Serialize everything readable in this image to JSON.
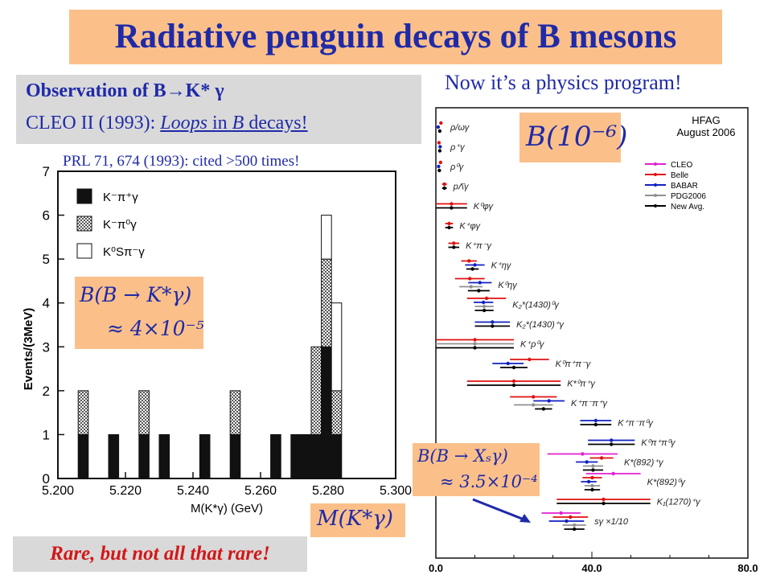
{
  "slide": {
    "title": "Radiative penguin decays of  B mesons",
    "observation_title": "Observation of B→K* γ",
    "observation_sub_pre": "CLEO II (1993):  ",
    "observation_sub_loops": "Loops",
    "observation_sub_mid": " in ",
    "observation_sub_b": "B",
    "observation_sub_post": " decays!",
    "citation": "PRL 71, 674 (1993): cited >500 times!",
    "physics_note": "Now it’s a physics program!",
    "tagline": "Rare, but not all that rare!",
    "bf_kstar_line1": "B(B → K*γ)",
    "bf_kstar_line2": "≈ 4×10⁻⁵",
    "bf_units": "B(10⁻⁶)",
    "bf_xs_line1": "B(B → Xₛγ)",
    "bf_xs_line2": "≈ 3.5×10⁻⁴",
    "mass_label": "M(K*γ)"
  },
  "chart_data": [
    {
      "type": "bar",
      "title": "",
      "xlabel": "M(K*γ) (GeV)",
      "ylabel": "Events/(3MeV)",
      "xlim": [
        5.2,
        5.3
      ],
      "ylim": [
        0,
        7
      ],
      "x_ticks": [
        "5.200",
        "5.220",
        "5.240",
        "5.260",
        "5.280",
        "5.300"
      ],
      "y_ticks": [
        "0",
        "1",
        "2",
        "3",
        "4",
        "5",
        "6",
        "7"
      ],
      "legend": [
        "K⁻π⁺γ",
        "K⁻π⁰γ",
        "K⁰Sπ⁻γ"
      ],
      "legend_position": "top-left",
      "bin_width": 0.003,
      "bins": [
        {
          "x": 5.2075,
          "solid": 1,
          "hatched": 1,
          "open": 0
        },
        {
          "x": 5.2165,
          "solid": 1,
          "hatched": 0,
          "open": 0
        },
        {
          "x": 5.2255,
          "solid": 1,
          "hatched": 1,
          "open": 0
        },
        {
          "x": 5.2315,
          "solid": 1,
          "hatched": 0,
          "open": 0
        },
        {
          "x": 5.2435,
          "solid": 1,
          "hatched": 0,
          "open": 0
        },
        {
          "x": 5.2525,
          "solid": 1,
          "hatched": 1,
          "open": 0
        },
        {
          "x": 5.2645,
          "solid": 1,
          "hatched": 0,
          "open": 0
        },
        {
          "x": 5.2705,
          "solid": 1,
          "hatched": 0,
          "open": 0
        },
        {
          "x": 5.2735,
          "solid": 1,
          "hatched": 0,
          "open": 0
        },
        {
          "x": 5.2765,
          "solid": 1,
          "hatched": 2,
          "open": 0
        },
        {
          "x": 5.2795,
          "solid": 3,
          "hatched": 2,
          "open": 1
        },
        {
          "x": 5.2825,
          "solid": 1,
          "hatched": 1,
          "open": 2
        }
      ]
    },
    {
      "type": "scatter",
      "title": "HFAG August 2006",
      "xlabel": "",
      "ylabel": "",
      "xlim": [
        0,
        80
      ],
      "x_ticks": [
        "0.0",
        "40.0",
        "80.0"
      ],
      "legend": [
        "CLEO",
        "Belle",
        "BABAR",
        "PDG2006",
        "New Avg."
      ],
      "legend_position": "top-right",
      "series_colors": {
        "CLEO": "#e020d0",
        "Belle": "#e01010",
        "BABAR": "#1020c0",
        "PDG2006": "#909090",
        "New Avg.": "#000000"
      },
      "modes": [
        {
          "label": "ρ/ωγ",
          "values": [
            {
              "s": "Belle",
              "v": 1.3,
              "e": 0.3
            },
            {
              "s": "BABAR",
              "v": 0.6,
              "e": 0.3
            },
            {
              "s": "New Avg.",
              "v": 1.0,
              "e": 0.25
            }
          ]
        },
        {
          "label": "ρ⁺γ",
          "values": [
            {
              "s": "Belle",
              "v": 0.8,
              "e": 0.4
            },
            {
              "s": "BABAR",
              "v": 1.1,
              "e": 0.4
            },
            {
              "s": "New Avg.",
              "v": 1.0,
              "e": 0.3
            }
          ]
        },
        {
          "label": "ρ⁰γ",
          "values": [
            {
              "s": "Belle",
              "v": 1.2,
              "e": 0.3
            },
            {
              "s": "BABAR",
              "v": 0.7,
              "e": 0.3
            },
            {
              "s": "New Avg.",
              "v": 0.9,
              "e": 0.2
            }
          ]
        },
        {
          "label": "pΛ̄γ",
          "values": [
            {
              "s": "Belle",
              "v": 2.2,
              "e": 0.6
            },
            {
              "s": "New Avg.",
              "v": 2.2,
              "e": 0.6
            }
          ]
        },
        {
          "label": "K⁰φγ",
          "values": [
            {
              "s": "Belle",
              "v": 4.0,
              "e": 4.0
            },
            {
              "s": "New Avg.",
              "v": 4.0,
              "e": 4.0
            }
          ]
        },
        {
          "label": "K⁺φγ",
          "values": [
            {
              "s": "Belle",
              "v": 3.4,
              "e": 1.0
            },
            {
              "s": "New Avg.",
              "v": 3.4,
              "e": 1.0
            }
          ]
        },
        {
          "label": "K⁺π⁻γ",
          "values": [
            {
              "s": "Belle",
              "v": 4.6,
              "e": 1.4
            },
            {
              "s": "New Avg.",
              "v": 4.6,
              "e": 1.4
            }
          ]
        },
        {
          "label": "K⁺ηγ",
          "values": [
            {
              "s": "Belle",
              "v": 8.5,
              "e": 2.0
            },
            {
              "s": "BABAR",
              "v": 10.0,
              "e": 2.5
            },
            {
              "s": "New Avg.",
              "v": 9.4,
              "e": 1.6
            }
          ]
        },
        {
          "label": "K⁰ηγ",
          "values": [
            {
              "s": "Belle",
              "v": 8.7,
              "e": 3.8
            },
            {
              "s": "BABAR",
              "v": 11.3,
              "e": 3.0
            },
            {
              "s": "PDG2006",
              "v": 9.0,
              "e": 3.0
            },
            {
              "s": "New Avg.",
              "v": 11.0,
              "e": 2.8
            }
          ]
        },
        {
          "label": "K₂*(1430)⁰γ",
          "values": [
            {
              "s": "Belle",
              "v": 13.0,
              "e": 5.0
            },
            {
              "s": "BABAR",
              "v": 12.2,
              "e": 2.5
            },
            {
              "s": "PDG2006",
              "v": 12.4,
              "e": 2.4
            },
            {
              "s": "New Avg.",
              "v": 12.4,
              "e": 2.4
            }
          ]
        },
        {
          "label": "K₂*(1430)⁺γ",
          "values": [
            {
              "s": "BABAR",
              "v": 14.5,
              "e": 4.5
            },
            {
              "s": "New Avg.",
              "v": 14.5,
              "e": 4.5
            }
          ]
        },
        {
          "label": "K⁺ρ⁰γ",
          "values": [
            {
              "s": "Belle",
              "v": 10.0,
              "e": 10.0
            },
            {
              "s": "PDG2006",
              "v": 10.0,
              "e": 10.0
            },
            {
              "s": "New Avg.",
              "v": 10.0,
              "e": 10.0
            }
          ]
        },
        {
          "label": "K⁰π⁺π⁻γ",
          "values": [
            {
              "s": "Belle",
              "v": 24.0,
              "e": 5.0
            },
            {
              "s": "BABAR",
              "v": 18.5,
              "e": 4.0
            },
            {
              "s": "New Avg.",
              "v": 20.0,
              "e": 3.5
            }
          ]
        },
        {
          "label": "K*⁰π⁺γ",
          "values": [
            {
              "s": "Belle",
              "v": 20.0,
              "e": 12.0
            },
            {
              "s": "New Avg.",
              "v": 20.0,
              "e": 12.0
            }
          ]
        },
        {
          "label": "K⁺π⁻π⁺γ",
          "values": [
            {
              "s": "Belle",
              "v": 25.0,
              "e": 6.0
            },
            {
              "s": "BABAR",
              "v": 29.0,
              "e": 4.0
            },
            {
              "s": "PDG2006",
              "v": 25.0,
              "e": 5.0
            },
            {
              "s": "New Avg.",
              "v": 27.6,
              "e": 2.2
            }
          ]
        },
        {
          "label": "K⁺π⁻π⁰γ",
          "values": [
            {
              "s": "BABAR",
              "v": 41.0,
              "e": 4.0
            },
            {
              "s": "New Avg.",
              "v": 41.0,
              "e": 4.0
            }
          ]
        },
        {
          "label": "K⁰π⁺π⁰γ",
          "values": [
            {
              "s": "BABAR",
              "v": 45.0,
              "e": 6.0
            },
            {
              "s": "New Avg.",
              "v": 45.0,
              "e": 6.0
            }
          ]
        },
        {
          "label": "K*(892)⁺γ",
          "values": [
            {
              "s": "CLEO",
              "v": 37.6,
              "e": 9.0
            },
            {
              "s": "Belle",
              "v": 42.5,
              "e": 3.0
            },
            {
              "s": "BABAR",
              "v": 38.7,
              "e": 2.8
            },
            {
              "s": "PDG2006",
              "v": 40.3,
              "e": 2.6
            },
            {
              "s": "New Avg.",
              "v": 40.3,
              "e": 2.6
            }
          ]
        },
        {
          "label": "K*(892)⁰γ",
          "values": [
            {
              "s": "CLEO",
              "v": 45.5,
              "e": 7.0
            },
            {
              "s": "Belle",
              "v": 40.1,
              "e": 2.5
            },
            {
              "s": "BABAR",
              "v": 39.2,
              "e": 2.0
            },
            {
              "s": "PDG2006",
              "v": 40.1,
              "e": 2.0
            },
            {
              "s": "New Avg.",
              "v": 40.1,
              "e": 2.0
            }
          ]
        },
        {
          "label": "K₁(1270)⁺γ",
          "values": [
            {
              "s": "Belle",
              "v": 43.0,
              "e": 12.0
            },
            {
              "s": "New Avg.",
              "v": 43.0,
              "e": 12.0
            }
          ]
        },
        {
          "label": "sγ  ×1/10",
          "values": [
            {
              "s": "CLEO",
              "v": 32.1,
              "e": 5.0
            },
            {
              "s": "Belle",
              "v": 34.5,
              "e": 4.5
            },
            {
              "s": "BABAR",
              "v": 33.5,
              "e": 4.5
            },
            {
              "s": "PDG2006",
              "v": 35.5,
              "e": 3.0
            },
            {
              "s": "New Avg.",
              "v": 35.5,
              "e": 2.6
            }
          ]
        }
      ]
    }
  ]
}
